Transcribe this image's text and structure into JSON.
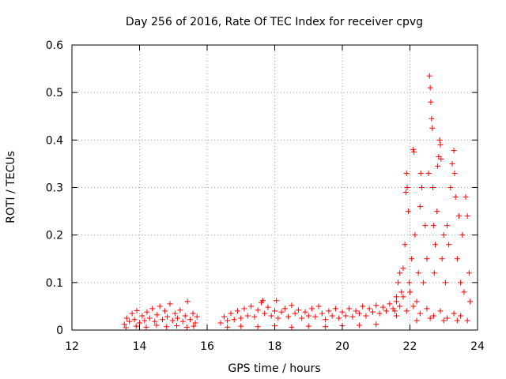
{
  "chart_data": {
    "type": "scatter",
    "title": "Day 256 of 2016, Rate Of TEC Index for receiver cpvg",
    "xlabel": "GPS time / hours",
    "ylabel": "ROTI / TECUs",
    "xlim": [
      12,
      24
    ],
    "ylim": [
      0,
      0.6
    ],
    "xticks": [
      "12",
      "14",
      "16",
      "18",
      "20",
      "22",
      "24"
    ],
    "yticks": [
      "0",
      "0.1",
      "0.2",
      "0.3",
      "0.4",
      "0.5",
      "0.6"
    ],
    "grid": true,
    "marker": "+",
    "color": "#ff0000",
    "series": [
      {
        "name": "ROTI",
        "points": [
          [
            13.55,
            0.012
          ],
          [
            13.62,
            0.025
          ],
          [
            13.7,
            0.018
          ],
          [
            13.78,
            0.035
          ],
          [
            13.85,
            0.022
          ],
          [
            13.92,
            0.041
          ],
          [
            14.0,
            0.015
          ],
          [
            14.08,
            0.03
          ],
          [
            14.15,
            0.02
          ],
          [
            14.22,
            0.038
          ],
          [
            14.3,
            0.025
          ],
          [
            14.38,
            0.045
          ],
          [
            14.45,
            0.018
          ],
          [
            14.52,
            0.032
          ],
          [
            14.6,
            0.05
          ],
          [
            14.68,
            0.022
          ],
          [
            14.75,
            0.04
          ],
          [
            14.82,
            0.028
          ],
          [
            14.9,
            0.055
          ],
          [
            14.98,
            0.02
          ],
          [
            15.05,
            0.035
          ],
          [
            15.12,
            0.025
          ],
          [
            15.2,
            0.042
          ],
          [
            15.28,
            0.018
          ],
          [
            15.35,
            0.03
          ],
          [
            15.42,
            0.06
          ],
          [
            15.5,
            0.022
          ],
          [
            15.58,
            0.035
          ],
          [
            15.65,
            0.015
          ],
          [
            15.7,
            0.028
          ],
          [
            13.6,
            0.005
          ],
          [
            13.9,
            0.008
          ],
          [
            14.2,
            0.006
          ],
          [
            14.5,
            0.01
          ],
          [
            14.8,
            0.007
          ],
          [
            15.1,
            0.009
          ],
          [
            15.4,
            0.006
          ],
          [
            15.6,
            0.008
          ],
          [
            16.4,
            0.015
          ],
          [
            16.5,
            0.028
          ],
          [
            16.6,
            0.02
          ],
          [
            16.7,
            0.035
          ],
          [
            16.8,
            0.022
          ],
          [
            16.9,
            0.04
          ],
          [
            17.0,
            0.025
          ],
          [
            17.1,
            0.045
          ],
          [
            17.2,
            0.03
          ],
          [
            17.3,
            0.05
          ],
          [
            17.4,
            0.028
          ],
          [
            17.5,
            0.042
          ],
          [
            17.6,
            0.058
          ],
          [
            17.65,
            0.062
          ],
          [
            17.7,
            0.035
          ],
          [
            17.8,
            0.048
          ],
          [
            17.9,
            0.03
          ],
          [
            18.0,
            0.04
          ],
          [
            18.05,
            0.062
          ],
          [
            18.1,
            0.025
          ],
          [
            18.2,
            0.038
          ],
          [
            18.3,
            0.045
          ],
          [
            18.4,
            0.028
          ],
          [
            18.5,
            0.052
          ],
          [
            18.6,
            0.035
          ],
          [
            18.7,
            0.042
          ],
          [
            18.8,
            0.025
          ],
          [
            18.9,
            0.038
          ],
          [
            19.0,
            0.03
          ],
          [
            19.1,
            0.045
          ],
          [
            19.2,
            0.028
          ],
          [
            19.3,
            0.05
          ],
          [
            19.4,
            0.035
          ],
          [
            19.5,
            0.022
          ],
          [
            19.6,
            0.04
          ],
          [
            19.7,
            0.03
          ],
          [
            19.8,
            0.045
          ],
          [
            19.9,
            0.025
          ],
          [
            20.0,
            0.038
          ],
          [
            20.1,
            0.03
          ],
          [
            20.2,
            0.045
          ],
          [
            20.3,
            0.028
          ],
          [
            20.4,
            0.04
          ],
          [
            20.5,
            0.035
          ],
          [
            20.6,
            0.05
          ],
          [
            20.7,
            0.03
          ],
          [
            20.8,
            0.045
          ],
          [
            20.9,
            0.038
          ],
          [
            21.0,
            0.052
          ],
          [
            21.1,
            0.035
          ],
          [
            21.2,
            0.048
          ],
          [
            21.3,
            0.04
          ],
          [
            21.4,
            0.055
          ],
          [
            21.5,
            0.045
          ],
          [
            21.6,
            0.06
          ],
          [
            21.7,
            0.05
          ],
          [
            21.8,
            0.07
          ],
          [
            16.6,
            0.006
          ],
          [
            17.0,
            0.008
          ],
          [
            17.5,
            0.007
          ],
          [
            18.0,
            0.009
          ],
          [
            18.5,
            0.006
          ],
          [
            19.0,
            0.008
          ],
          [
            19.5,
            0.007
          ],
          [
            20.0,
            0.009
          ],
          [
            20.5,
            0.01
          ],
          [
            21.0,
            0.012
          ],
          [
            21.55,
            0.04
          ],
          [
            21.6,
            0.07
          ],
          [
            21.65,
            0.1
          ],
          [
            21.7,
            0.12
          ],
          [
            21.75,
            0.08
          ],
          [
            21.8,
            0.13
          ],
          [
            21.85,
            0.18
          ],
          [
            21.88,
            0.29
          ],
          [
            21.9,
            0.33
          ],
          [
            21.92,
            0.3
          ],
          [
            21.95,
            0.25
          ],
          [
            21.98,
            0.1
          ],
          [
            22.0,
            0.08
          ],
          [
            22.05,
            0.15
          ],
          [
            22.1,
            0.38
          ],
          [
            22.12,
            0.375
          ],
          [
            22.15,
            0.2
          ],
          [
            22.2,
            0.06
          ],
          [
            22.25,
            0.12
          ],
          [
            22.3,
            0.26
          ],
          [
            22.32,
            0.33
          ],
          [
            22.35,
            0.3
          ],
          [
            22.4,
            0.1
          ],
          [
            22.45,
            0.22
          ],
          [
            22.5,
            0.15
          ],
          [
            22.55,
            0.33
          ],
          [
            22.58,
            0.535
          ],
          [
            22.6,
            0.51
          ],
          [
            22.62,
            0.48
          ],
          [
            22.64,
            0.445
          ],
          [
            22.66,
            0.425
          ],
          [
            22.68,
            0.3
          ],
          [
            22.7,
            0.22
          ],
          [
            22.72,
            0.12
          ],
          [
            22.75,
            0.18
          ],
          [
            22.8,
            0.25
          ],
          [
            22.82,
            0.345
          ],
          [
            22.85,
            0.365
          ],
          [
            22.88,
            0.4
          ],
          [
            22.9,
            0.39
          ],
          [
            22.92,
            0.36
          ],
          [
            22.95,
            0.15
          ],
          [
            23.0,
            0.2
          ],
          [
            23.05,
            0.1
          ],
          [
            23.1,
            0.22
          ],
          [
            23.15,
            0.18
          ],
          [
            23.2,
            0.3
          ],
          [
            23.25,
            0.35
          ],
          [
            23.3,
            0.378
          ],
          [
            23.32,
            0.33
          ],
          [
            23.35,
            0.28
          ],
          [
            23.4,
            0.15
          ],
          [
            23.45,
            0.24
          ],
          [
            23.5,
            0.1
          ],
          [
            23.55,
            0.2
          ],
          [
            23.6,
            0.08
          ],
          [
            23.65,
            0.28
          ],
          [
            23.7,
            0.24
          ],
          [
            23.75,
            0.12
          ],
          [
            23.78,
            0.06
          ],
          [
            21.6,
            0.03
          ],
          [
            21.9,
            0.04
          ],
          [
            22.1,
            0.05
          ],
          [
            22.3,
            0.035
          ],
          [
            22.5,
            0.045
          ],
          [
            22.7,
            0.03
          ],
          [
            22.9,
            0.04
          ],
          [
            23.1,
            0.025
          ],
          [
            23.3,
            0.035
          ],
          [
            23.5,
            0.03
          ],
          [
            23.7,
            0.02
          ],
          [
            22.2,
            0.02
          ],
          [
            22.6,
            0.025
          ],
          [
            23.0,
            0.02
          ],
          [
            23.4,
            0.02
          ]
        ]
      }
    ]
  }
}
